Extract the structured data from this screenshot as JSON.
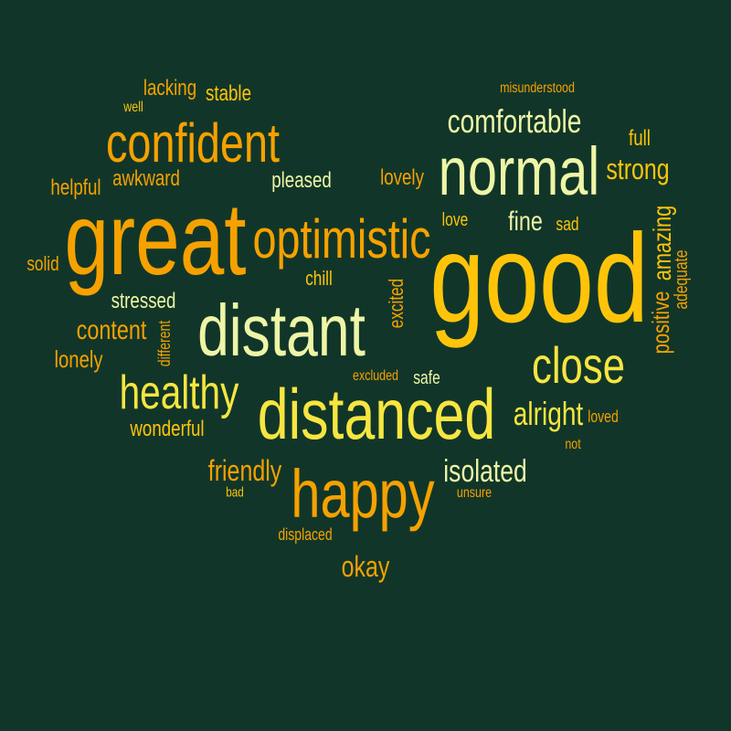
{
  "background": "#113629",
  "palette": {
    "orange": "#F6A100",
    "gold": "#FFC40A",
    "yellow": "#F7E540",
    "pale": "#EEF5A6"
  },
  "words": [
    {
      "text": "good",
      "color": "gold",
      "dir": "h"
    },
    {
      "text": "great",
      "color": "orange",
      "dir": "h"
    },
    {
      "text": "distant",
      "color": "pale",
      "dir": "h"
    },
    {
      "text": "distanced",
      "color": "yellow",
      "dir": "h"
    },
    {
      "text": "normal",
      "color": "pale",
      "dir": "h"
    },
    {
      "text": "happy",
      "color": "orange",
      "dir": "h"
    },
    {
      "text": "confident",
      "color": "orange",
      "dir": "h"
    },
    {
      "text": "optimistic",
      "color": "orange",
      "dir": "h"
    },
    {
      "text": "close",
      "color": "yellow",
      "dir": "h"
    },
    {
      "text": "healthy",
      "color": "yellow",
      "dir": "h"
    },
    {
      "text": "comfortable",
      "color": "pale",
      "dir": "h"
    },
    {
      "text": "alright",
      "color": "yellow",
      "dir": "h"
    },
    {
      "text": "isolated",
      "color": "pale",
      "dir": "h"
    },
    {
      "text": "friendly",
      "color": "orange",
      "dir": "h"
    },
    {
      "text": "strong",
      "color": "gold",
      "dir": "h"
    },
    {
      "text": "content",
      "color": "orange",
      "dir": "h"
    },
    {
      "text": "okay",
      "color": "orange",
      "dir": "h"
    },
    {
      "text": "fine",
      "color": "pale",
      "dir": "h"
    },
    {
      "text": "amazing",
      "color": "gold",
      "dir": "v"
    },
    {
      "text": "positive",
      "color": "orange",
      "dir": "v"
    },
    {
      "text": "lonely",
      "color": "orange",
      "dir": "h"
    },
    {
      "text": "wonderful",
      "color": "gold",
      "dir": "h"
    },
    {
      "text": "stressed",
      "color": "pale",
      "dir": "h"
    },
    {
      "text": "awkward",
      "color": "orange",
      "dir": "h"
    },
    {
      "text": "pleased",
      "color": "pale",
      "dir": "h"
    },
    {
      "text": "lovely",
      "color": "orange",
      "dir": "h"
    },
    {
      "text": "helpful",
      "color": "orange",
      "dir": "h"
    },
    {
      "text": "lacking",
      "color": "orange",
      "dir": "h"
    },
    {
      "text": "stable",
      "color": "gold",
      "dir": "h"
    },
    {
      "text": "full",
      "color": "gold",
      "dir": "h"
    },
    {
      "text": "excited",
      "color": "orange",
      "dir": "v"
    },
    {
      "text": "adequate",
      "color": "orange",
      "dir": "v"
    },
    {
      "text": "solid",
      "color": "orange",
      "dir": "h"
    },
    {
      "text": "chill",
      "color": "gold",
      "dir": "h"
    },
    {
      "text": "safe",
      "color": "pale",
      "dir": "h"
    },
    {
      "text": "sad",
      "color": "gold",
      "dir": "h"
    },
    {
      "text": "love",
      "color": "gold",
      "dir": "h"
    },
    {
      "text": "loved",
      "color": "orange",
      "dir": "h"
    },
    {
      "text": "different",
      "color": "orange",
      "dir": "v"
    },
    {
      "text": "displaced",
      "color": "orange",
      "dir": "h"
    },
    {
      "text": "misunderstood",
      "color": "orange",
      "dir": "h"
    },
    {
      "text": "excluded",
      "color": "orange",
      "dir": "h"
    },
    {
      "text": "unsure",
      "color": "orange",
      "dir": "h"
    },
    {
      "text": "well",
      "color": "gold",
      "dir": "h"
    },
    {
      "text": "not",
      "color": "orange",
      "dir": "h"
    },
    {
      "text": "bad",
      "color": "gold",
      "dir": "h"
    }
  ]
}
